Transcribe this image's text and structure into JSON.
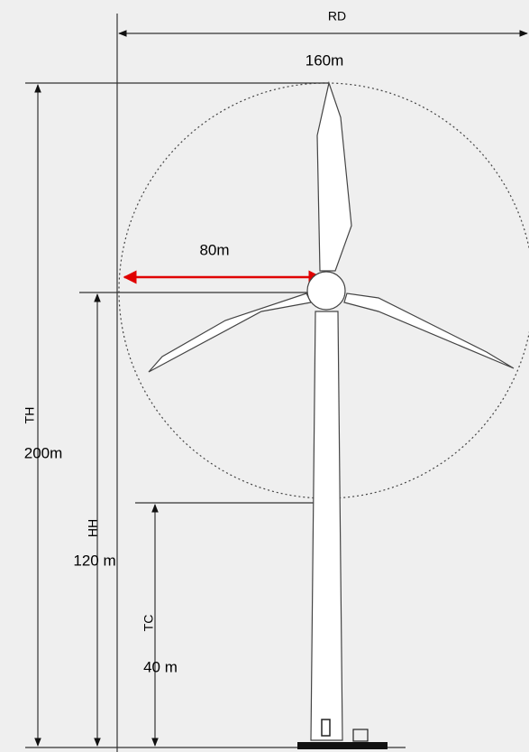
{
  "labels": {
    "rd": "RD",
    "rotor_diameter": "160m",
    "radius": "80m",
    "th": "TH",
    "tip_height": "200m",
    "hh": "HH",
    "hub_height": "120 m",
    "tc": "TC",
    "tip_clearance": "40 m"
  }
}
